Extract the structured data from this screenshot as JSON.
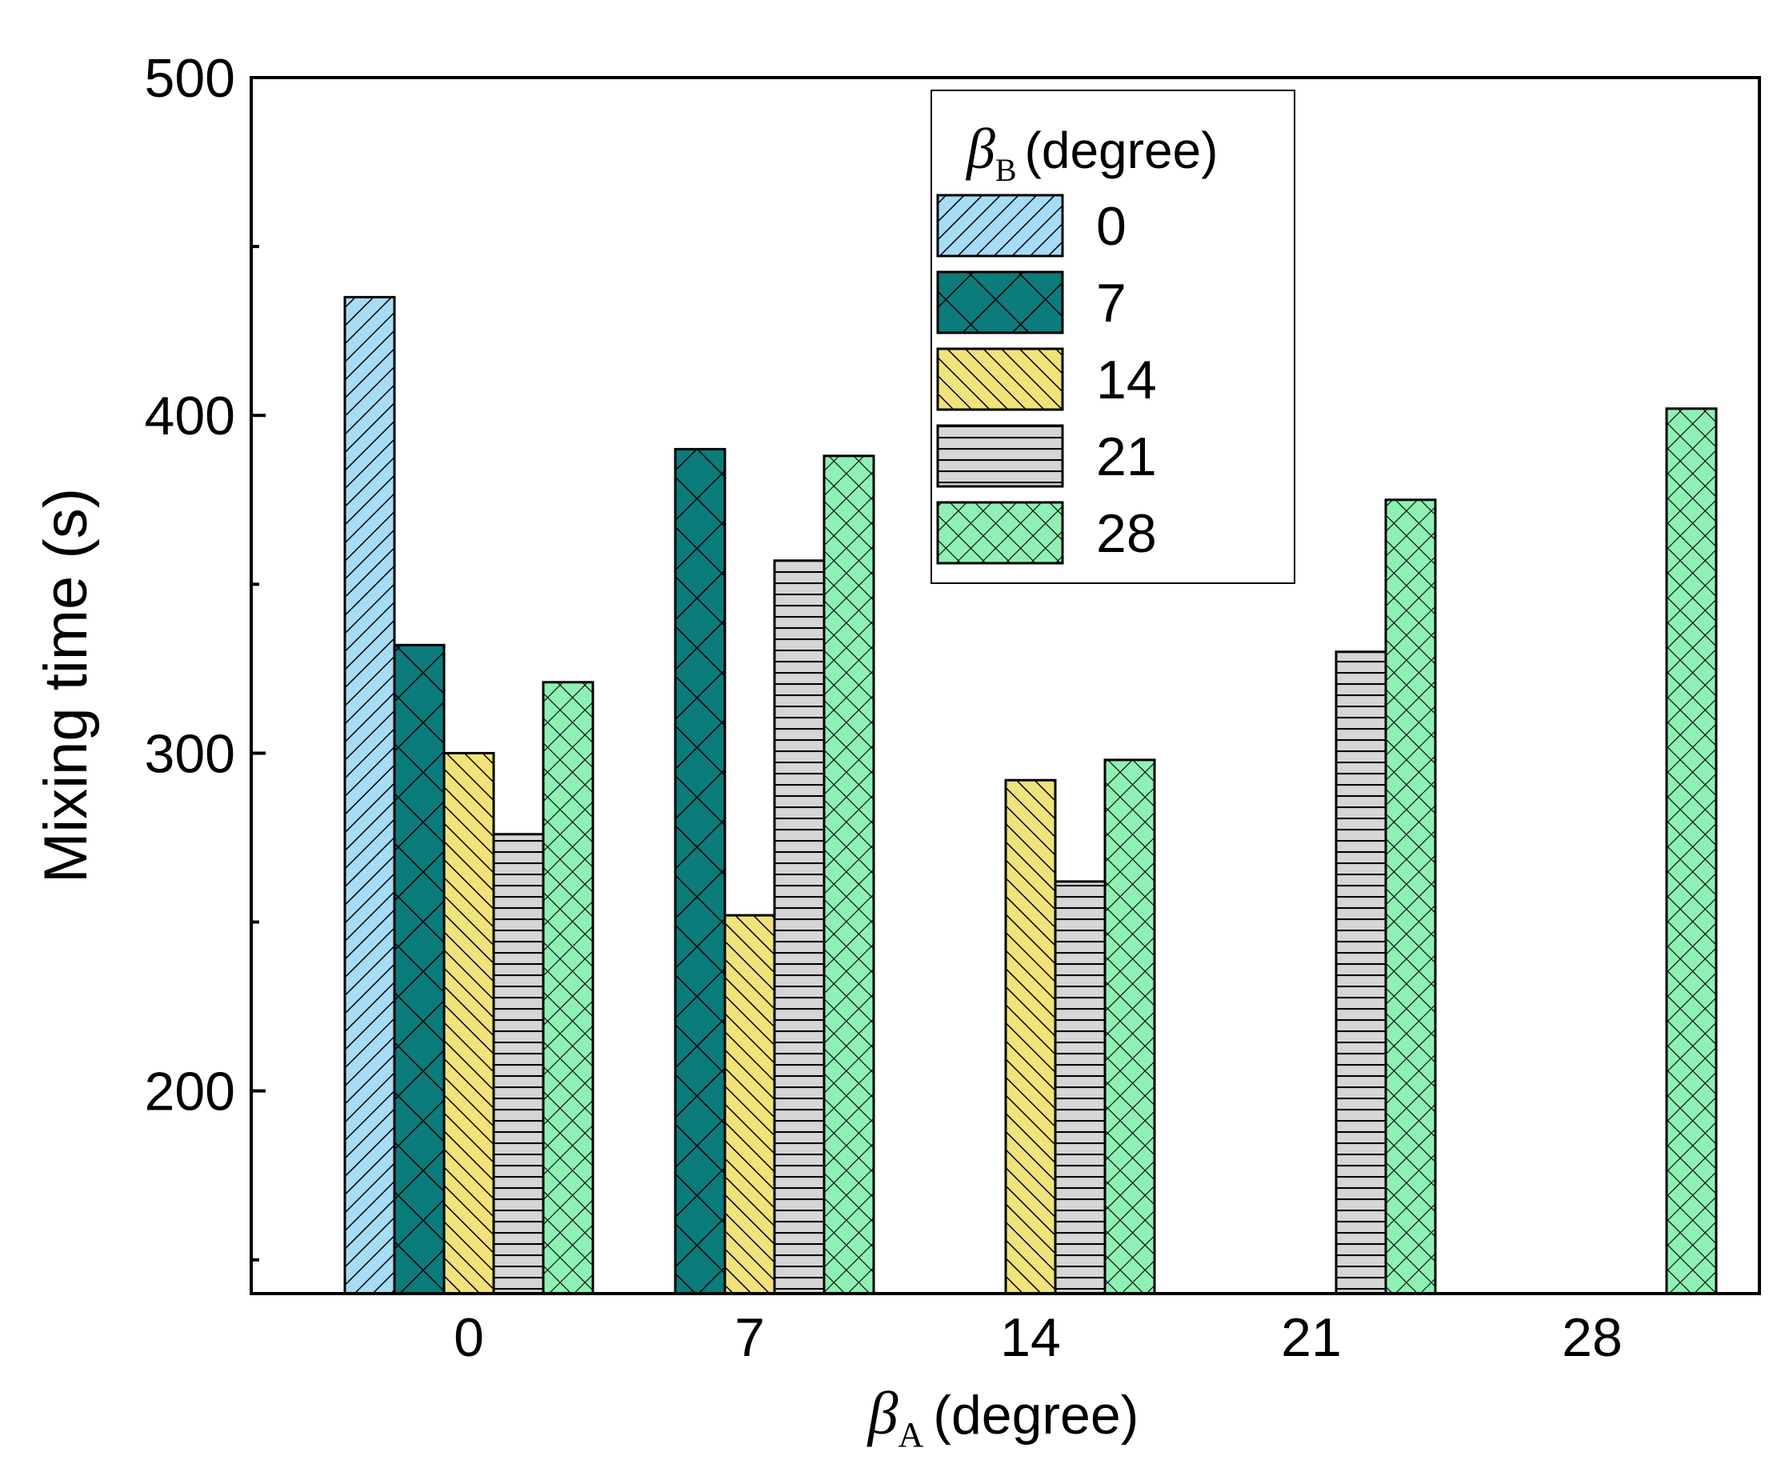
{
  "chart_data": {
    "type": "bar",
    "title": "",
    "xlabel": {
      "symbol": "β",
      "sub": "A",
      "text": "(degree)"
    },
    "ylabel": "Mixing time (s)",
    "categories": [
      "0",
      "7",
      "14",
      "21",
      "28"
    ],
    "ylim": [
      140,
      500
    ],
    "yticks": [
      200,
      300,
      400,
      500
    ],
    "yminor": [
      150,
      250,
      350,
      450
    ],
    "ytick_labels": [
      "200",
      "300",
      "400",
      "500"
    ],
    "legend": {
      "title_symbol": "β",
      "title_sub": "B",
      "title_text": "(degree)",
      "placement": "top-center"
    },
    "series": [
      {
        "name": "0",
        "color": "#a6dcf5",
        "pattern": "diag-right",
        "values": [
          435,
          null,
          null,
          null,
          null
        ]
      },
      {
        "name": "7",
        "color": "#0b7b7b",
        "pattern": "crosshatch-large",
        "values": [
          332,
          390,
          null,
          null,
          null
        ]
      },
      {
        "name": "14",
        "color": "#f2e27a",
        "pattern": "diag-left",
        "values": [
          300,
          252,
          292,
          null,
          null
        ]
      },
      {
        "name": "21",
        "color": "#d6d6d6",
        "pattern": "horizontal",
        "values": [
          276,
          357,
          262,
          330,
          null
        ]
      },
      {
        "name": "28",
        "color": "#8ff0b4",
        "pattern": "crosshatch-small",
        "values": [
          321,
          388,
          298,
          375,
          402
        ]
      }
    ]
  }
}
